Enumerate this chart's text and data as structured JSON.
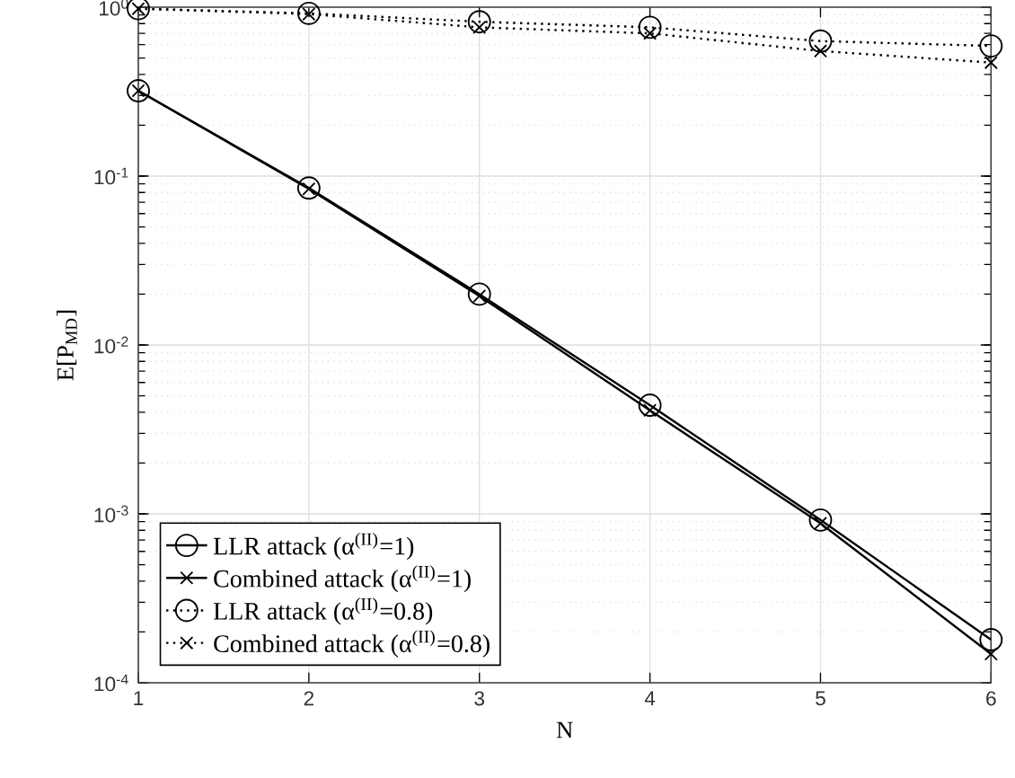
{
  "chart_data": {
    "type": "line",
    "xlabel": "N",
    "ylabel": "E[P$_{MD}$]",
    "log": "y",
    "grid": true,
    "legend": "bottom left",
    "x": [
      1,
      2,
      3,
      4,
      5,
      6
    ],
    "xlim": [
      1,
      6
    ],
    "xticks": [
      1,
      2,
      3,
      4,
      5,
      6
    ],
    "ylim": [
      0.0001,
      1
    ],
    "yticks": [
      {
        "value": 0.0001,
        "label": "10$^{-4}$"
      },
      {
        "value": 0.001,
        "label": "10$^{-3}$"
      },
      {
        "value": 0.01,
        "label": "10$^{-2}$"
      },
      {
        "value": 0.1,
        "label": "10$^{-1}$"
      },
      {
        "value": 1,
        "label": "10$^{0}$"
      }
    ],
    "series": [
      {
        "name": "LLR attack (α$^{(II)}$=1)",
        "color": "#000000",
        "marker": "circle",
        "line_style": "solid",
        "values": [
          0.32,
          0.085,
          0.02,
          0.0044,
          0.00092,
          0.00018
        ]
      },
      {
        "name": "Combined attack (α$^{(II)}$=1)",
        "color": "#000000",
        "marker": "cross",
        "line_style": "solid",
        "values": [
          0.32,
          0.084,
          0.0195,
          0.0041,
          0.00088,
          0.000148
        ]
      },
      {
        "name": "LLR attack (α$^{(II)}$=0.8)",
        "color": "#000000",
        "marker": "circle",
        "line_style": "dotted",
        "values": [
          0.98,
          0.92,
          0.82,
          0.76,
          0.63,
          0.59
        ]
      },
      {
        "name": "Combined attack (α$^{(II)}$=0.8)",
        "color": "#000000",
        "marker": "cross",
        "line_style": "dotted",
        "values": [
          0.98,
          0.91,
          0.76,
          0.7,
          0.55,
          0.47
        ]
      }
    ]
  }
}
